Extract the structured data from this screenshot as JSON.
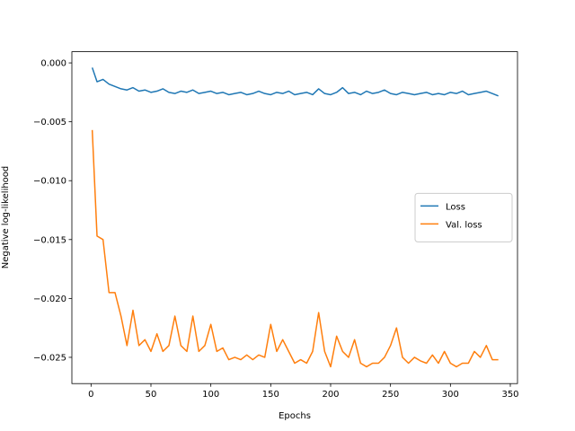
{
  "chart_data": {
    "type": "line",
    "xlabel": "Epochs",
    "ylabel": "Negative log-likelihood",
    "x": [
      1,
      5,
      10,
      15,
      20,
      25,
      30,
      35,
      40,
      45,
      50,
      55,
      60,
      65,
      70,
      75,
      80,
      85,
      90,
      95,
      100,
      105,
      110,
      115,
      120,
      125,
      130,
      135,
      140,
      145,
      150,
      155,
      160,
      165,
      170,
      175,
      180,
      185,
      190,
      195,
      200,
      205,
      210,
      215,
      220,
      225,
      230,
      235,
      240,
      245,
      250,
      255,
      260,
      265,
      270,
      275,
      280,
      285,
      290,
      295,
      300,
      305,
      310,
      315,
      320,
      325,
      330,
      335,
      340
    ],
    "series": [
      {
        "name": "Loss",
        "color": "#1f77b4",
        "values": [
          -0.0004,
          -0.0016,
          -0.0014,
          -0.0018,
          -0.002,
          -0.0022,
          -0.0023,
          -0.0021,
          -0.0024,
          -0.0023,
          -0.0025,
          -0.0024,
          -0.0022,
          -0.0025,
          -0.0026,
          -0.0024,
          -0.0025,
          -0.0023,
          -0.0026,
          -0.0025,
          -0.0024,
          -0.0026,
          -0.0025,
          -0.0027,
          -0.0026,
          -0.0025,
          -0.0027,
          -0.0026,
          -0.0024,
          -0.0026,
          -0.0027,
          -0.0025,
          -0.0026,
          -0.0024,
          -0.0027,
          -0.0026,
          -0.0025,
          -0.0027,
          -0.0022,
          -0.0026,
          -0.0027,
          -0.0025,
          -0.0021,
          -0.0026,
          -0.0025,
          -0.0027,
          -0.0024,
          -0.0026,
          -0.0025,
          -0.0023,
          -0.0026,
          -0.0027,
          -0.0025,
          -0.0026,
          -0.0027,
          -0.0026,
          -0.0025,
          -0.0027,
          -0.0026,
          -0.0027,
          -0.0025,
          -0.0026,
          -0.0024,
          -0.0027,
          -0.0026,
          -0.0025,
          -0.0024,
          -0.0026,
          -0.0028
        ]
      },
      {
        "name": "Val. loss",
        "color": "#ff7f0e",
        "values": [
          -0.0057,
          -0.0147,
          -0.015,
          -0.0195,
          -0.0195,
          -0.0215,
          -0.024,
          -0.021,
          -0.024,
          -0.0235,
          -0.0245,
          -0.023,
          -0.0245,
          -0.024,
          -0.0215,
          -0.024,
          -0.0245,
          -0.0215,
          -0.0245,
          -0.024,
          -0.0222,
          -0.0245,
          -0.0242,
          -0.0252,
          -0.025,
          -0.0252,
          -0.0248,
          -0.0252,
          -0.0248,
          -0.025,
          -0.0222,
          -0.0245,
          -0.0235,
          -0.0245,
          -0.0255,
          -0.0252,
          -0.0255,
          -0.0245,
          -0.0212,
          -0.0245,
          -0.0258,
          -0.0232,
          -0.0245,
          -0.025,
          -0.0235,
          -0.0255,
          -0.0258,
          -0.0255,
          -0.0255,
          -0.025,
          -0.024,
          -0.0225,
          -0.025,
          -0.0255,
          -0.025,
          -0.0253,
          -0.0255,
          -0.0248,
          -0.0255,
          -0.0245,
          -0.0255,
          -0.0258,
          -0.0255,
          -0.0255,
          -0.0245,
          -0.025,
          -0.024,
          -0.0252,
          -0.0252
        ]
      }
    ],
    "xlim": [
      -16,
      356
    ],
    "xticks": [
      0,
      50,
      100,
      150,
      200,
      250,
      300,
      350
    ],
    "ylim": [
      -0.02723,
      0.00095
    ],
    "yticks": [
      {
        "value": 0,
        "label": "0.000"
      },
      {
        "value": -0.005,
        "label": "−0.005"
      },
      {
        "value": -0.01,
        "label": "−0.010"
      },
      {
        "value": -0.015,
        "label": "−0.015"
      },
      {
        "value": -0.02,
        "label": "−0.020"
      },
      {
        "value": -0.025,
        "label": "−0.025"
      }
    ],
    "legend": "center right",
    "grid": false
  }
}
